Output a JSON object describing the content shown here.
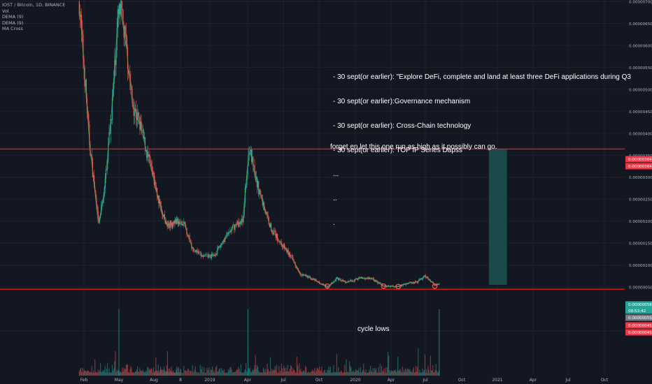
{
  "header": {
    "symbol_line": "IOST / Bitcoin, 1D, BINANCE",
    "indicators": [
      "Vol",
      "DEMA (9)",
      "DEMA (9)",
      "MA Cross"
    ]
  },
  "annotations": {
    "roadmap_lines": [
      "- 30 sept(or earlier): \"Explore DeFi, complete and land at least three DeFi applications during Q3",
      "- 30 sept(or earlier):Governance mechanism",
      "- 30 sept(or earlier): Cross-Chain technology",
      "- 30 sept(or earlier): TOP IP Series Dapss",
      "...",
      "..",
      "."
    ],
    "target_note": "forget en let this one run as high as it possibly can go.",
    "cycle_lows": "cycle lows"
  },
  "price_axis": {
    "ticks": [
      "0.00000700",
      "0.00000650",
      "0.00000600",
      "0.00000550",
      "0.00000500",
      "0.00000450",
      "0.00000400",
      "0.00000350",
      "0.00000300",
      "0.00000250",
      "0.00000200",
      "0.00000150",
      "0.00000100",
      "0.00000050",
      "-0.00000050"
    ],
    "labels": [
      {
        "text": "0.00000364",
        "bg": "#f23645"
      },
      {
        "text": "0.00000364",
        "bg": "#f23645"
      },
      {
        "text": "0.00000056",
        "bg": "#26a69a"
      },
      {
        "text": "09:53:42",
        "bg": "#26a69a"
      },
      {
        "text": "0.00000055",
        "bg": "#787b86"
      },
      {
        "text": "0.00000045",
        "bg": "#f23645"
      },
      {
        "text": "0.00000045",
        "bg": "#f23645"
      }
    ]
  },
  "time_axis": {
    "labels": [
      "Feb",
      "May",
      "Aug",
      "8",
      "2019",
      "Apr",
      "Jul",
      "Oct",
      "2020",
      "Apr",
      "Jul",
      "Oct",
      "2021",
      "Apr",
      "Jul",
      "Oct"
    ]
  },
  "colors": {
    "background": "#131722",
    "up": "#26a69a",
    "down": "#ef5350",
    "horizontal_line": "#e01a1a",
    "target_box": "#1b4a4a",
    "axis_text": "#b2b5be",
    "cycle_low_marker": "#ff5252"
  },
  "chart_data": {
    "type": "candlestick",
    "title": "IOST / Bitcoin, 1D, BINANCE",
    "y_unit": "BTC",
    "ylim": [
      -7e-07,
      7e-06
    ],
    "horizontal_levels": [
      3.64e-06,
      4.5e-07
    ],
    "target_zone": {
      "x_from": "2020-12-10",
      "x_to": "2021-01-25",
      "y_from": 5.5e-07,
      "y_to": 3.64e-06
    },
    "cycle_low_markers": [
      {
        "x": "2019-10-22",
        "y": 5.2e-07
      },
      {
        "x": "2020-03-13",
        "y": 5.2e-07
      },
      {
        "x": "2020-04-20",
        "y": 5.1e-07
      },
      {
        "x": "2020-07-25",
        "y": 5.2e-07
      }
    ],
    "series": [
      {
        "type": "close",
        "x": [
          "2018-01-20",
          "2018-02-15",
          "2018-03-10",
          "2018-03-25",
          "2018-04-15",
          "2018-04-28",
          "2018-05-05",
          "2018-05-20",
          "2018-06-05",
          "2018-06-25",
          "2018-07-15",
          "2018-08-05",
          "2018-08-25",
          "2018-09-15",
          "2018-10-15",
          "2018-11-10",
          "2018-11-25",
          "2018-12-15",
          "2019-01-10",
          "2019-02-05",
          "2019-03-01",
          "2019-03-20",
          "2019-04-05",
          "2019-04-20",
          "2019-05-10",
          "2019-06-01",
          "2019-06-25",
          "2019-07-20",
          "2019-08-15",
          "2019-09-10",
          "2019-10-01",
          "2019-10-22",
          "2019-11-15",
          "2019-12-10",
          "2020-01-10",
          "2020-02-10",
          "2020-03-13",
          "2020-04-20",
          "2020-05-10",
          "2020-06-10",
          "2020-07-01",
          "2020-07-25",
          "2020-08-05"
        ],
        "values": [
          7e-06,
          3.8e-06,
          1.9e-06,
          2.7e-06,
          4.8e-06,
          6.6e-06,
          6.8e-06,
          6e-06,
          4.7e-06,
          4.2e-06,
          3.5e-06,
          2.8e-06,
          2.3e-06,
          1.9e-06,
          2e-06,
          1.9e-06,
          1.4e-06,
          1.2e-06,
          1.2e-06,
          1.6e-06,
          1.9e-06,
          2e-06,
          3.7e-06,
          3e-06,
          2.4e-06,
          1.8e-06,
          1.5e-06,
          1.2e-06,
          8e-07,
          7e-07,
          6e-07,
          5e-07,
          7e-07,
          6e-07,
          7e-07,
          7e-07,
          5.2e-07,
          5.1e-07,
          5.8e-07,
          6.2e-07,
          7.5e-07,
          5.5e-07,
          5.6e-07
        ]
      },
      {
        "type": "volume",
        "description": "daily volume bars",
        "peaks": [
          "2018-05-01",
          "2019-04-02",
          "2020-08-05"
        ]
      }
    ]
  }
}
